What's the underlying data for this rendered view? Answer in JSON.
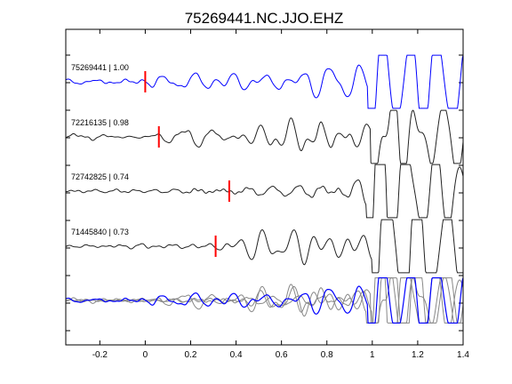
{
  "chart_data": {
    "type": "line",
    "title": "75269441.NC.JJO.EHZ",
    "xlabel": "",
    "ylabel": "",
    "xlim": [
      -0.35,
      1.4
    ],
    "x_ticks": [
      -0.2,
      0,
      0.2,
      0.4,
      0.6,
      0.8,
      1,
      1.2,
      1.4
    ],
    "x_tick_labels": [
      "-0.2",
      "0",
      "0.2",
      "0.4",
      "0.6",
      "0.8",
      "1",
      "1.2",
      "1.4"
    ],
    "grid": false,
    "legend": "none",
    "colors": {
      "reference": "#0000ff",
      "other": "#222222",
      "stack_other": "#888888",
      "pick": "#ff0000"
    },
    "series": [
      {
        "label": "75269441 | 1.00",
        "pick_time": 0.0,
        "reference": true
      },
      {
        "label": "72216135 | 0.98",
        "pick_time": 0.06,
        "reference": false
      },
      {
        "label": "72742825 | 0.74",
        "pick_time": 0.37,
        "reference": false
      },
      {
        "label": "71445840 | 0.73",
        "pick_time": 0.31,
        "reference": false
      }
    ],
    "overlay": {
      "description": "all traces aligned and overlaid at bottom"
    }
  }
}
